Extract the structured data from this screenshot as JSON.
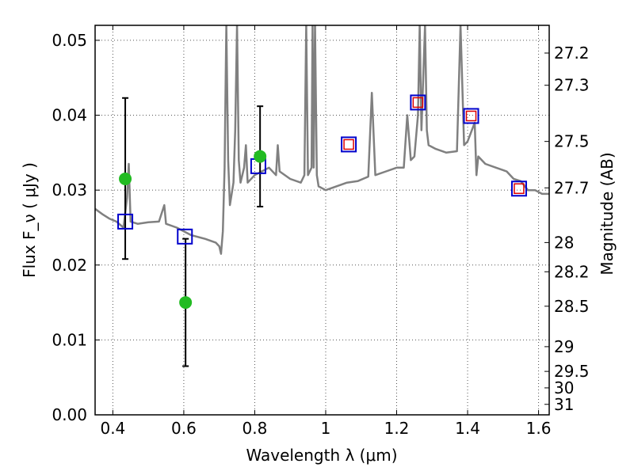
{
  "chart_data": {
    "type": "line",
    "xlabel": "Wavelength  λ (μm)",
    "ylabel": "Flux  F_ν  ( μJy )",
    "ylabel_right": "Magnitude (AB)",
    "xlim": [
      0.35,
      1.63
    ],
    "ylim": [
      0.0,
      0.052
    ],
    "grid": true,
    "x_ticks": [
      0.4,
      0.6,
      0.8,
      1.0,
      1.2,
      1.4,
      1.6
    ],
    "x_tick_labels": [
      "0.4",
      "0.6",
      "0.8",
      "1",
      "1.2",
      "1.4",
      "1.6"
    ],
    "y_ticks": [
      0.0,
      0.01,
      0.02,
      0.03,
      0.04,
      0.05
    ],
    "y_tick_labels": [
      "0.00",
      "0.01",
      "0.02",
      "0.03",
      "0.04",
      "0.05"
    ],
    "right_ticks": [
      {
        "label": "27.2",
        "flux": 0.0483
      },
      {
        "label": "27.3",
        "flux": 0.044
      },
      {
        "label": "27.5",
        "flux": 0.0365
      },
      {
        "label": "27.7",
        "flux": 0.0303
      },
      {
        "label": "28",
        "flux": 0.023
      },
      {
        "label": "28.2",
        "flux": 0.0191
      },
      {
        "label": "28.5",
        "flux": 0.0145
      },
      {
        "label": "29",
        "flux": 0.0091
      },
      {
        "label": "29.5",
        "flux": 0.0058
      },
      {
        "label": "30",
        "flux": 0.0036
      },
      {
        "label": "31",
        "flux": 0.0014
      }
    ],
    "colors": {
      "spectrum": "#808080",
      "observed": "#22bb22",
      "model_box": "#0000cc",
      "model_inner": "#dd0000",
      "errorbar": "#000000",
      "grid": "#555555"
    },
    "series": [
      {
        "kind": "spectrum",
        "points": [
          [
            0.35,
            0.0275
          ],
          [
            0.37,
            0.0268
          ],
          [
            0.39,
            0.0262
          ],
          [
            0.41,
            0.0258
          ],
          [
            0.43,
            0.025
          ],
          [
            0.44,
            0.029
          ],
          [
            0.445,
            0.0335
          ],
          [
            0.45,
            0.0258
          ],
          [
            0.47,
            0.0255
          ],
          [
            0.5,
            0.0257
          ],
          [
            0.53,
            0.0258
          ],
          [
            0.545,
            0.028
          ],
          [
            0.55,
            0.0255
          ],
          [
            0.58,
            0.025
          ],
          [
            0.62,
            0.024
          ],
          [
            0.66,
            0.0235
          ],
          [
            0.69,
            0.023
          ],
          [
            0.7,
            0.0225
          ],
          [
            0.705,
            0.0215
          ],
          [
            0.71,
            0.0245
          ],
          [
            0.715,
            0.033
          ],
          [
            0.72,
            0.052
          ],
          [
            0.725,
            0.034
          ],
          [
            0.73,
            0.028
          ],
          [
            0.74,
            0.031
          ],
          [
            0.745,
            0.038
          ],
          [
            0.75,
            0.052
          ],
          [
            0.755,
            0.034
          ],
          [
            0.76,
            0.031
          ],
          [
            0.77,
            0.033
          ],
          [
            0.775,
            0.036
          ],
          [
            0.78,
            0.031
          ],
          [
            0.8,
            0.032
          ],
          [
            0.82,
            0.0325
          ],
          [
            0.84,
            0.033
          ],
          [
            0.86,
            0.032
          ],
          [
            0.865,
            0.036
          ],
          [
            0.87,
            0.0325
          ],
          [
            0.9,
            0.0315
          ],
          [
            0.93,
            0.031
          ],
          [
            0.94,
            0.032
          ],
          [
            0.945,
            0.052
          ],
          [
            0.95,
            0.032
          ],
          [
            0.96,
            0.033
          ],
          [
            0.963,
            0.052
          ],
          [
            0.966,
            0.033
          ],
          [
            0.97,
            0.052
          ],
          [
            0.975,
            0.032
          ],
          [
            0.98,
            0.0305
          ],
          [
            1.0,
            0.03
          ],
          [
            1.03,
            0.0305
          ],
          [
            1.06,
            0.031
          ],
          [
            1.09,
            0.0312
          ],
          [
            1.12,
            0.0318
          ],
          [
            1.13,
            0.043
          ],
          [
            1.14,
            0.032
          ],
          [
            1.17,
            0.0325
          ],
          [
            1.2,
            0.033
          ],
          [
            1.22,
            0.033
          ],
          [
            1.23,
            0.04
          ],
          [
            1.24,
            0.034
          ],
          [
            1.25,
            0.0345
          ],
          [
            1.26,
            0.04
          ],
          [
            1.265,
            0.052
          ],
          [
            1.27,
            0.038
          ],
          [
            1.28,
            0.052
          ],
          [
            1.285,
            0.038
          ],
          [
            1.29,
            0.036
          ],
          [
            1.31,
            0.0355
          ],
          [
            1.34,
            0.035
          ],
          [
            1.37,
            0.0352
          ],
          [
            1.38,
            0.052
          ],
          [
            1.39,
            0.036
          ],
          [
            1.4,
            0.0365
          ],
          [
            1.42,
            0.039
          ],
          [
            1.425,
            0.032
          ],
          [
            1.43,
            0.0345
          ],
          [
            1.45,
            0.0335
          ],
          [
            1.48,
            0.033
          ],
          [
            1.51,
            0.0325
          ],
          [
            1.53,
            0.0315
          ],
          [
            1.55,
            0.0312
          ],
          [
            1.57,
            0.03
          ],
          [
            1.59,
            0.03
          ],
          [
            1.61,
            0.0295
          ],
          [
            1.63,
            0.0295
          ]
        ]
      },
      {
        "kind": "observed",
        "points": [
          {
            "x": 0.435,
            "y": 0.0315,
            "yerr_low": 0.0208,
            "yerr_high": 0.0423
          },
          {
            "x": 0.605,
            "y": 0.015,
            "yerr_low": 0.0065,
            "yerr_high": 0.0235
          },
          {
            "x": 0.815,
            "y": 0.0345,
            "yerr_low": 0.0278,
            "yerr_high": 0.0412
          }
        ]
      },
      {
        "kind": "model_box",
        "points": [
          {
            "x": 0.435,
            "y": 0.0258,
            "inner": false
          },
          {
            "x": 0.603,
            "y": 0.0238,
            "inner": false
          },
          {
            "x": 0.81,
            "y": 0.0332,
            "inner": false
          },
          {
            "x": 1.065,
            "y": 0.0361,
            "inner": true
          },
          {
            "x": 1.26,
            "y": 0.0417,
            "inner": true
          },
          {
            "x": 1.41,
            "y": 0.0399,
            "inner": true
          },
          {
            "x": 1.545,
            "y": 0.0302,
            "inner": true
          }
        ]
      }
    ]
  }
}
